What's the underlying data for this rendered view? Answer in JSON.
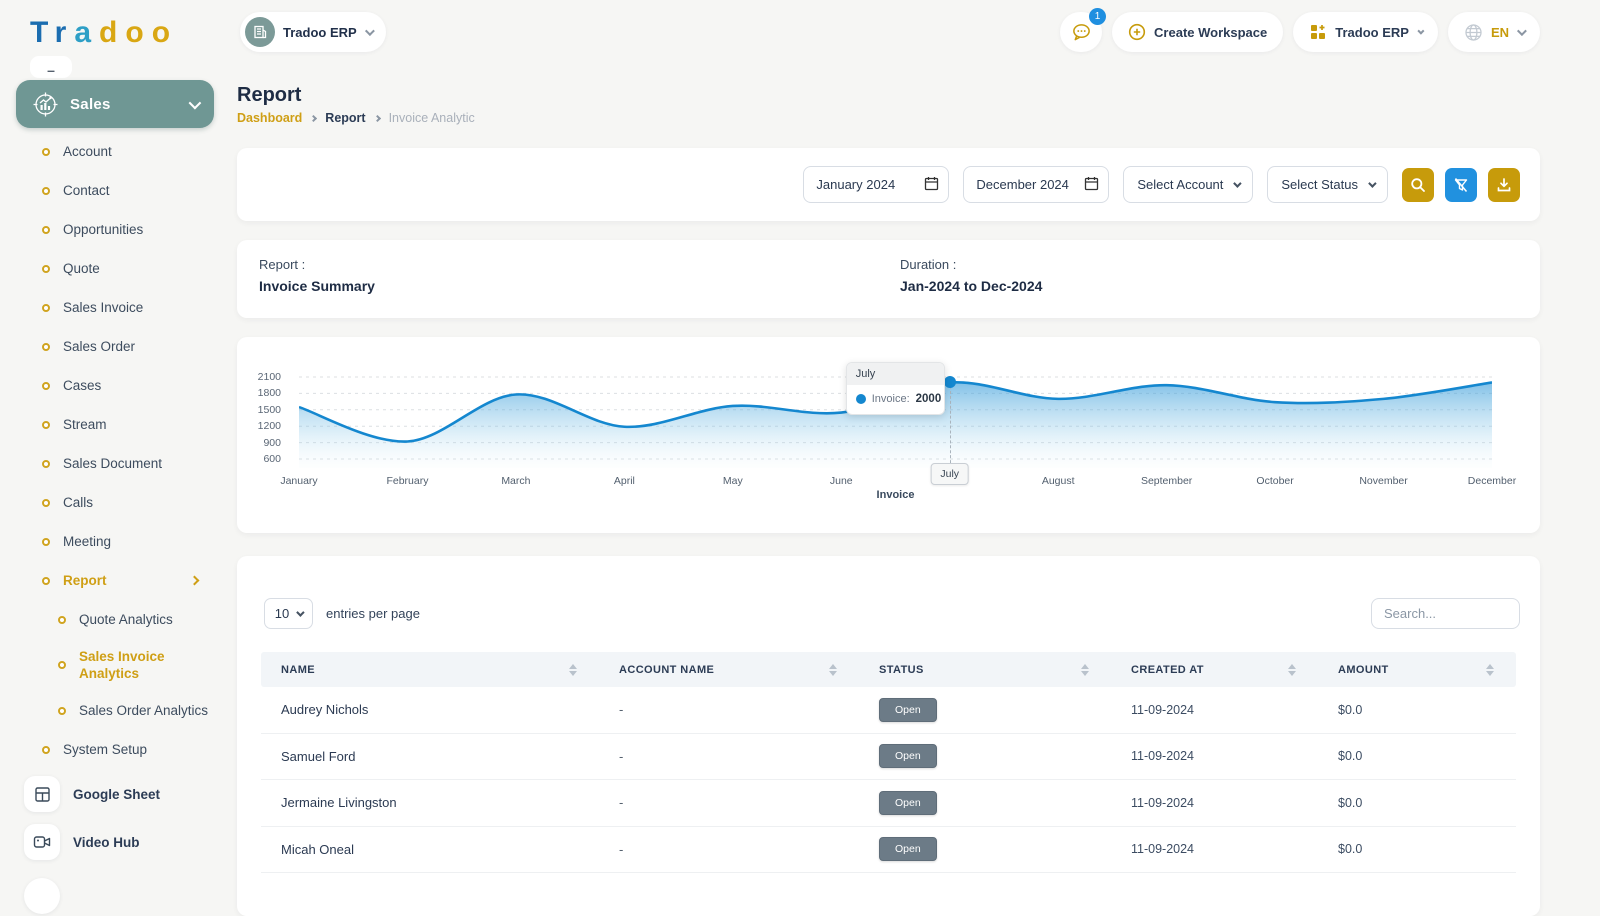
{
  "theme": {
    "gold": "#c79b0b",
    "teal": "#6f9794",
    "blue": "#2191df",
    "chart_line": "#1487cf",
    "badge_gray": "#6c7b87"
  },
  "logo": {
    "letters": [
      {
        "ch": "T",
        "color": "#1b6db0"
      },
      {
        "ch": "r",
        "color": "#1b6db0"
      },
      {
        "ch": "a",
        "color": "#2e9fc6"
      },
      {
        "ch": "d",
        "color": "#d9a713"
      },
      {
        "ch": "o",
        "color": "#d9a713"
      },
      {
        "ch": "o",
        "color": "#d9a713"
      }
    ]
  },
  "header": {
    "workspace_selector": "Tradoo ERP",
    "chat_badge": "1",
    "create_workspace": "Create Workspace",
    "tenant": "Tradoo ERP",
    "language": "EN"
  },
  "sidebar": {
    "section": "Sales",
    "items": [
      {
        "label": "Account",
        "level": 0
      },
      {
        "label": "Contact",
        "level": 0
      },
      {
        "label": "Opportunities",
        "level": 0
      },
      {
        "label": "Quote",
        "level": 0
      },
      {
        "label": "Sales Invoice",
        "level": 0
      },
      {
        "label": "Sales Order",
        "level": 0
      },
      {
        "label": "Cases",
        "level": 0
      },
      {
        "label": "Stream",
        "level": 0
      },
      {
        "label": "Sales Document",
        "level": 0
      },
      {
        "label": "Calls",
        "level": 0
      },
      {
        "label": "Meeting",
        "level": 0
      },
      {
        "label": "Report",
        "level": 0,
        "active": true,
        "expand": true
      },
      {
        "label": "Quote Analytics",
        "level": 1
      },
      {
        "label": "Sales Invoice Analytics",
        "level": 1,
        "active": true,
        "twoline": true
      },
      {
        "label": "Sales Order Analytics",
        "level": 1
      },
      {
        "label": "System Setup",
        "level": 0
      }
    ],
    "footer": [
      {
        "label": "Google Sheet",
        "icon": "sheet-icon"
      },
      {
        "label": "Video Hub",
        "icon": "video-icon"
      }
    ]
  },
  "page": {
    "title": "Report",
    "breadcrumb": {
      "root": "Dashboard",
      "section": "Report",
      "current": "Invoice Analytic"
    }
  },
  "filters": {
    "from_date": "January 2024",
    "to_date": "December 2024",
    "account": "Select Account",
    "status": "Select Status"
  },
  "summary": {
    "report_label": "Report :",
    "report_value": "Invoice Summary",
    "duration_label": "Duration :",
    "duration_value": "Jan-2024 to Dec-2024"
  },
  "chart_data": {
    "type": "area",
    "title": "",
    "xlabel": "Invoice",
    "ylabel": "",
    "categories": [
      "January",
      "February",
      "March",
      "April",
      "May",
      "June",
      "July",
      "August",
      "September",
      "October",
      "November",
      "December"
    ],
    "series": [
      {
        "name": "Invoice",
        "values": [
          1550,
          920,
          1780,
          1190,
          1570,
          1450,
          2000,
          1700,
          1950,
          1640,
          1700,
          2000
        ]
      }
    ],
    "ylim": [
      600,
      2100
    ],
    "yticks": [
      600,
      900,
      1200,
      1500,
      1800,
      2100
    ],
    "grid": true,
    "tooltip": {
      "month": "July",
      "series_label": "Invoice:",
      "value": "2000",
      "index": 6
    }
  },
  "table": {
    "page_size": "10",
    "entries_label": "entries per page",
    "search_placeholder": "Search...",
    "columns": [
      "NAME",
      "ACCOUNT NAME",
      "STATUS",
      "CREATED AT",
      "AMOUNT"
    ],
    "rows": [
      {
        "name": "Audrey Nichols",
        "account": "-",
        "status": "Open",
        "created": "11-09-2024",
        "amount": "$0.0"
      },
      {
        "name": "Samuel Ford",
        "account": "-",
        "status": "Open",
        "created": "11-09-2024",
        "amount": "$0.0"
      },
      {
        "name": "Jermaine Livingston",
        "account": "-",
        "status": "Open",
        "created": "11-09-2024",
        "amount": "$0.0"
      },
      {
        "name": "Micah Oneal",
        "account": "-",
        "status": "Open",
        "created": "11-09-2024",
        "amount": "$0.0"
      }
    ]
  }
}
